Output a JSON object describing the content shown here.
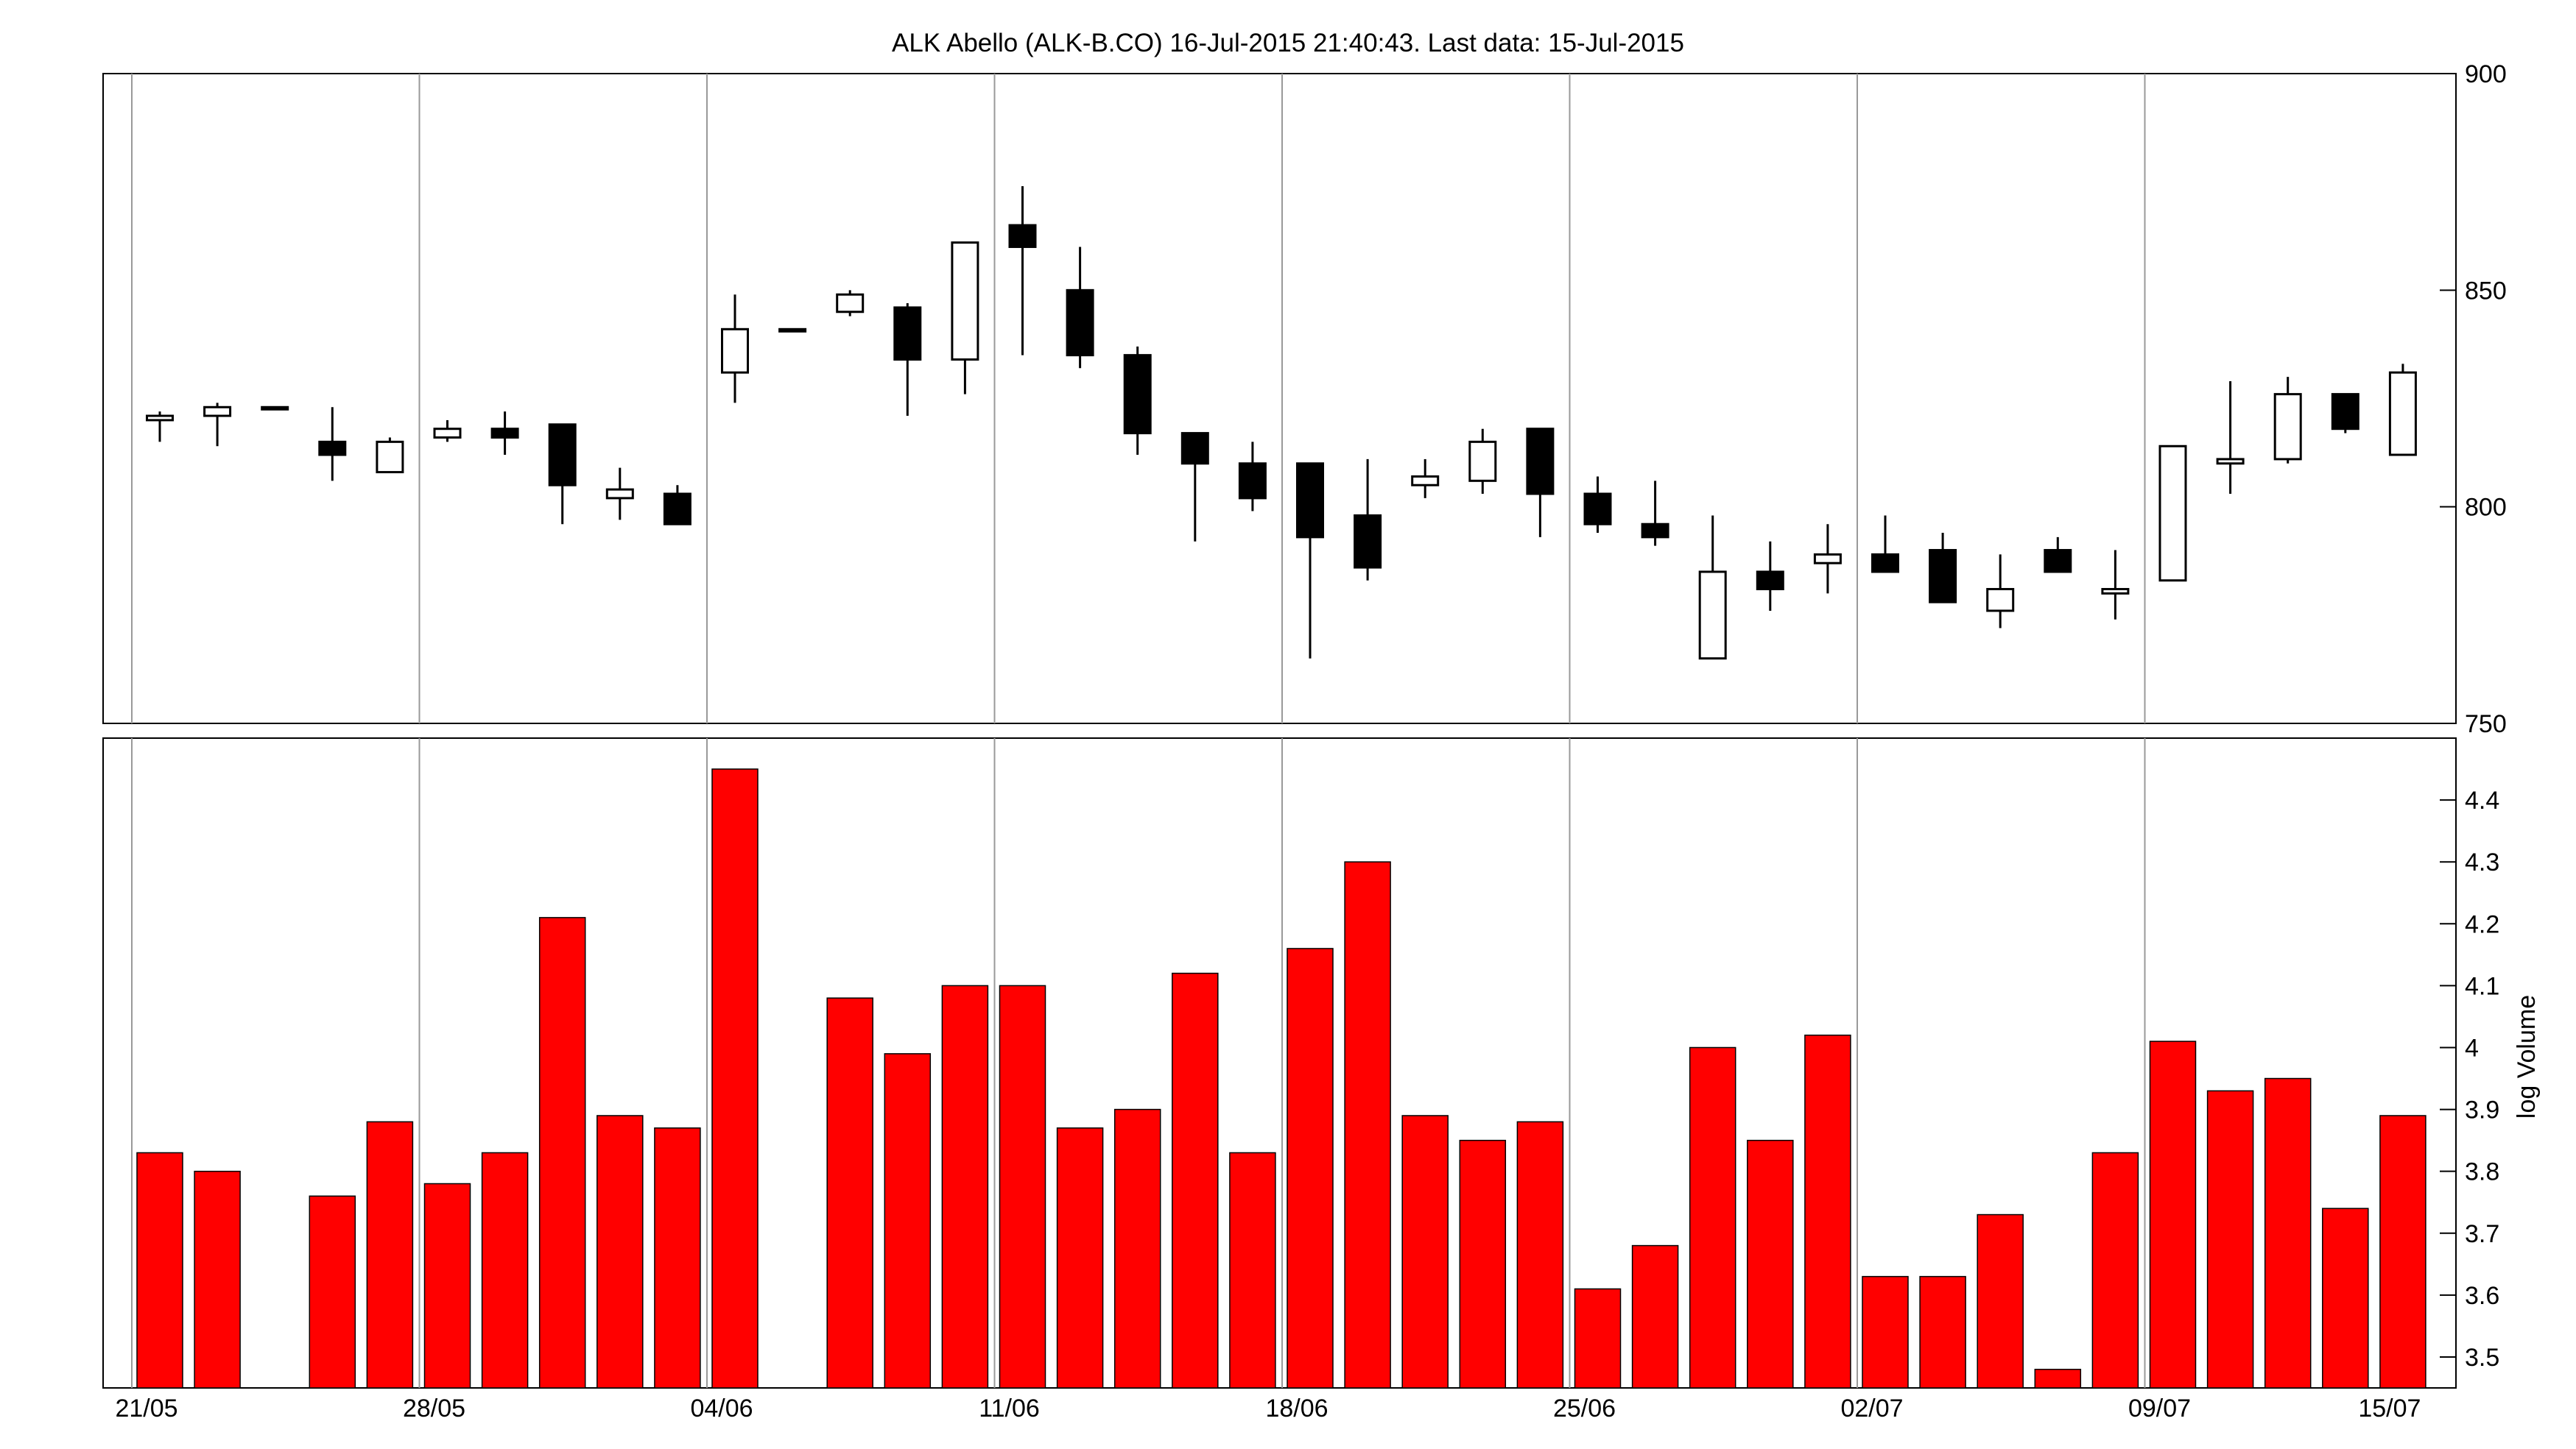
{
  "chart_data": {
    "type": "candlestick",
    "title": "ALK Abello (ALK-B.CO) 16-Jul-2015 21:40:43. Last data: 15-Jul-2015",
    "x_tick_labels": [
      "21/05",
      "28/05",
      "04/06",
      "11/06",
      "18/06",
      "25/06",
      "02/07",
      "09/07",
      "15/07"
    ],
    "x_tick_days": [
      1,
      6,
      11,
      16,
      21,
      26,
      31,
      36,
      40
    ],
    "price": {
      "ylim": [
        750,
        900
      ],
      "ticks": [
        750,
        800,
        850,
        900
      ],
      "candles": [
        {
          "day": 1,
          "open": 820,
          "close": 821,
          "high": 822,
          "low": 815
        },
        {
          "day": 2,
          "open": 821,
          "close": 823,
          "high": 824,
          "low": 814
        },
        {
          "day": 3,
          "open": 823,
          "close": 823,
          "high": 823,
          "low": 823
        },
        {
          "day": 4,
          "open": 815,
          "close": 812,
          "high": 823,
          "low": 806
        },
        {
          "day": 5,
          "open": 808,
          "close": 815,
          "high": 816,
          "low": 808
        },
        {
          "day": 6,
          "open": 816,
          "close": 818,
          "high": 820,
          "low": 815
        },
        {
          "day": 7,
          "open": 818,
          "close": 816,
          "high": 822,
          "low": 812
        },
        {
          "day": 8,
          "open": 819,
          "close": 805,
          "high": 819,
          "low": 796
        },
        {
          "day": 9,
          "open": 802,
          "close": 804,
          "high": 809,
          "low": 797
        },
        {
          "day": 10,
          "open": 803,
          "close": 796,
          "high": 805,
          "low": 796
        },
        {
          "day": 11,
          "open": 831,
          "close": 841,
          "high": 849,
          "low": 824
        },
        {
          "day": 12,
          "open": 841,
          "close": 841,
          "high": 841,
          "low": 841
        },
        {
          "day": 13,
          "open": 845,
          "close": 849,
          "high": 850,
          "low": 844
        },
        {
          "day": 14,
          "open": 846,
          "close": 834,
          "high": 847,
          "low": 821
        },
        {
          "day": 15,
          "open": 834,
          "close": 861,
          "high": 861,
          "low": 826
        },
        {
          "day": 16,
          "open": 865,
          "close": 860,
          "high": 874,
          "low": 835
        },
        {
          "day": 17,
          "open": 850,
          "close": 835,
          "high": 860,
          "low": 832
        },
        {
          "day": 18,
          "open": 835,
          "close": 817,
          "high": 837,
          "low": 812
        },
        {
          "day": 19,
          "open": 817,
          "close": 810,
          "high": 817,
          "low": 792
        },
        {
          "day": 20,
          "open": 810,
          "close": 802,
          "high": 815,
          "low": 799
        },
        {
          "day": 21,
          "open": 810,
          "close": 793,
          "high": 810,
          "low": 765
        },
        {
          "day": 22,
          "open": 798,
          "close": 786,
          "high": 811,
          "low": 783
        },
        {
          "day": 23,
          "open": 805,
          "close": 807,
          "high": 811,
          "low": 802
        },
        {
          "day": 24,
          "open": 806,
          "close": 815,
          "high": 818,
          "low": 803
        },
        {
          "day": 25,
          "open": 818,
          "close": 803,
          "high": 818,
          "low": 793
        },
        {
          "day": 26,
          "open": 803,
          "close": 796,
          "high": 807,
          "low": 794
        },
        {
          "day": 27,
          "open": 796,
          "close": 793,
          "high": 806,
          "low": 791
        },
        {
          "day": 28,
          "open": 765,
          "close": 785,
          "high": 798,
          "low": 765
        },
        {
          "day": 29,
          "open": 785,
          "close": 781,
          "high": 792,
          "low": 776
        },
        {
          "day": 30,
          "open": 787,
          "close": 789,
          "high": 796,
          "low": 780
        },
        {
          "day": 31,
          "open": 789,
          "close": 785,
          "high": 798,
          "low": 785
        },
        {
          "day": 32,
          "open": 790,
          "close": 778,
          "high": 794,
          "low": 778
        },
        {
          "day": 33,
          "open": 776,
          "close": 781,
          "high": 789,
          "low": 772
        },
        {
          "day": 34,
          "open": 790,
          "close": 785,
          "high": 793,
          "low": 785
        },
        {
          "day": 35,
          "open": 780,
          "close": 781,
          "high": 790,
          "low": 774
        },
        {
          "day": 36,
          "open": 783,
          "close": 814,
          "high": 814,
          "low": 783
        },
        {
          "day": 37,
          "open": 810,
          "close": 811,
          "high": 829,
          "low": 803
        },
        {
          "day": 38,
          "open": 811,
          "close": 826,
          "high": 830,
          "low": 810
        },
        {
          "day": 39,
          "open": 826,
          "close": 818,
          "high": 826,
          "low": 817
        },
        {
          "day": 40,
          "open": 812,
          "close": 831,
          "high": 833,
          "low": 812
        }
      ]
    },
    "volume": {
      "ylabel": "log Volume",
      "ylim": [
        3.45,
        4.5
      ],
      "ticks": [
        3.5,
        3.6,
        3.7,
        3.8,
        3.9,
        4,
        4.1,
        4.2,
        4.3,
        4.4
      ],
      "tick_labels": [
        "3.5",
        "3.6",
        "3.7",
        "3.8",
        "3.9",
        "4",
        "4.1",
        "4.2",
        "4.3",
        "4.4"
      ],
      "bar_color": "#ff0000",
      "values": [
        3.83,
        3.8,
        null,
        3.76,
        3.88,
        3.78,
        3.83,
        4.21,
        3.89,
        3.87,
        4.45,
        null,
        4.08,
        3.99,
        4.1,
        4.1,
        3.87,
        3.9,
        4.12,
        3.83,
        4.16,
        4.3,
        3.89,
        3.85,
        3.88,
        3.61,
        3.68,
        4.0,
        3.85,
        4.02,
        3.63,
        3.63,
        3.73,
        3.48,
        3.83,
        4.01,
        3.93,
        3.95,
        3.74,
        3.89
      ]
    },
    "grid": "vertical",
    "legend": "none"
  }
}
